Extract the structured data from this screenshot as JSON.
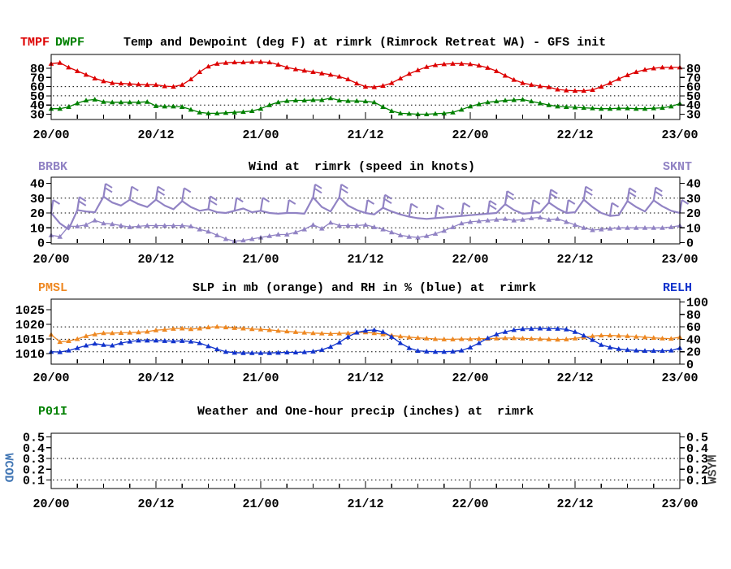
{
  "station": "rimrk",
  "time_axis": {
    "labels": [
      "20/00",
      "20/12",
      "21/00",
      "21/12",
      "22/00",
      "22/12",
      "23/00"
    ],
    "label_interval_hours": 12,
    "tick_interval_hours": 3
  },
  "side_labels": {
    "wcod": "WCOD",
    "wsym": "WSYM"
  },
  "chart_data": [
    {
      "id": "temp_dewpoint",
      "type": "line",
      "title": "Temp and Dewpoint (deg F) at rimrk (Rimrock Retreat WA) - GFS init",
      "y_axis": {
        "ticks": [
          80,
          70,
          60,
          50,
          40,
          30
        ],
        "dotted_gridlines": [
          40,
          50,
          60
        ]
      },
      "x_hours": {
        "start": 0,
        "end": 72,
        "step": 1
      },
      "series": [
        {
          "name": "TMPF",
          "color": "#dd0000",
          "units": "deg F",
          "markers": true,
          "values": [
            85,
            86,
            81,
            77,
            73,
            69,
            66,
            64,
            63.5,
            63,
            62.5,
            62,
            62,
            60.5,
            60,
            62,
            68,
            76,
            82,
            85,
            86,
            86.5,
            86.5,
            87,
            87,
            86.5,
            84,
            81,
            79,
            77.5,
            76,
            74.5,
            73,
            71,
            68,
            63.5,
            60,
            59.5,
            61,
            64,
            69,
            74,
            78,
            81.5,
            83.5,
            84.5,
            85,
            85,
            84.5,
            83,
            80.5,
            77,
            72,
            67.5,
            64,
            62,
            60.5,
            59.5,
            57,
            56,
            55.5,
            55.5,
            56.5,
            60,
            64,
            68.5,
            72.5,
            76,
            78.5,
            80,
            81,
            81,
            81
          ]
        },
        {
          "name": "DWPF",
          "color": "#008000",
          "units": "deg F",
          "markers": true,
          "values": [
            36,
            36,
            38,
            42,
            45,
            46,
            43.5,
            43,
            43,
            43,
            43,
            43.5,
            39,
            38.5,
            38.5,
            38,
            35,
            32,
            31,
            31,
            31.5,
            32,
            32.5,
            33.5,
            36,
            40,
            43,
            44.5,
            45,
            45,
            45.5,
            45.5,
            47.5,
            45,
            44.5,
            44.5,
            44,
            43,
            38,
            33.5,
            31,
            30.5,
            30,
            30,
            30.5,
            31,
            32,
            35,
            38.5,
            41,
            43,
            44,
            45,
            45.5,
            46,
            44,
            42,
            40,
            38.5,
            38,
            37.5,
            37,
            36.5,
            36,
            36,
            36.5,
            36.5,
            36,
            36,
            36.5,
            37,
            38.5,
            41.5
          ]
        }
      ]
    },
    {
      "id": "wind",
      "type": "line",
      "title": "Wind at  rimrk (speed in knots)",
      "y_axis": {
        "ticks": [
          40,
          30,
          20,
          10,
          0
        ],
        "dotted_gridlines": [
          10,
          20,
          30
        ]
      },
      "x_hours": {
        "start": 0,
        "end": 72,
        "step": 1
      },
      "series": [
        {
          "name": "SKNT",
          "color": "#9183c4",
          "units": "knots",
          "markers": true,
          "values": [
            5,
            4,
            11,
            11,
            12,
            15,
            13,
            12.5,
            11.5,
            10.5,
            11,
            11.5,
            11.5,
            11.5,
            11.5,
            11.5,
            11,
            9,
            7.5,
            5,
            2.5,
            1,
            1.5,
            2.5,
            3.5,
            4.5,
            5.5,
            5.5,
            7,
            9,
            12,
            9.5,
            13.5,
            11.5,
            11.5,
            11.5,
            12,
            10.5,
            9,
            7,
            5,
            4,
            3.5,
            4.5,
            6,
            8,
            10.5,
            13,
            14,
            14.5,
            15,
            15.5,
            16,
            15,
            15.5,
            16.5,
            17,
            15.5,
            16,
            14,
            12,
            10,
            8.5,
            9,
            9.5,
            10,
            10,
            10,
            10,
            10,
            10,
            10.5,
            11.5
          ]
        },
        {
          "name": "BRBK",
          "color": "#9183c4",
          "units": "knots",
          "markers": false,
          "values": [
            20,
            13,
            9,
            22,
            21,
            20.5,
            31,
            27,
            25,
            29,
            26,
            24,
            29,
            25,
            22.5,
            28,
            24,
            21.5,
            22.5,
            20.5,
            20,
            21.5,
            23,
            20.5,
            21.5,
            20,
            19.5,
            20,
            20,
            19.5,
            30.5,
            24,
            21,
            30.5,
            25,
            22,
            20,
            19,
            23.5,
            21,
            19,
            17.5,
            16.5,
            16,
            16.5,
            17,
            17.5,
            18,
            18.5,
            19,
            19.5,
            20,
            26,
            22,
            19.5,
            20,
            20.5,
            27,
            23,
            20,
            20.5,
            29,
            24,
            20,
            18,
            18.5,
            28,
            24,
            21,
            28.5,
            24.5,
            21.5,
            20
          ]
        }
      ],
      "barbs": [
        [
          0,
          1
        ],
        [
          3,
          2
        ],
        [
          6,
          2
        ],
        [
          9,
          1
        ],
        [
          12,
          2
        ],
        [
          15,
          1
        ],
        [
          18,
          2
        ],
        [
          21,
          1
        ],
        [
          24,
          1
        ],
        [
          27,
          1
        ],
        [
          30,
          2
        ],
        [
          33,
          2
        ],
        [
          36,
          1
        ],
        [
          38,
          2
        ],
        [
          41,
          1
        ],
        [
          44,
          1
        ],
        [
          47,
          1
        ],
        [
          50,
          2
        ],
        [
          52,
          2
        ],
        [
          55,
          1
        ],
        [
          57,
          2
        ],
        [
          59,
          1
        ],
        [
          61,
          2
        ],
        [
          64,
          1
        ],
        [
          66,
          2
        ],
        [
          69,
          2
        ],
        [
          72,
          1
        ]
      ]
    },
    {
      "id": "slp_rh",
      "type": "line",
      "title": "SLP in mb (orange) and RH in % (blue) at  rimrk",
      "y_axis_left": {
        "ticks": [
          1025,
          1020,
          1015,
          1010
        ]
      },
      "y_axis_right": {
        "ticks": [
          100,
          80,
          60,
          40,
          20,
          0
        ],
        "dotted_gridlines": [
          20,
          40,
          60
        ]
      },
      "x_hours": {
        "start": 0,
        "end": 72,
        "step": 1
      },
      "series": [
        {
          "name": "PMSL",
          "color": "#ee8822",
          "units": "mb",
          "axis": "left",
          "markers": true,
          "values": [
            1016.5,
            1014,
            1014.3,
            1015,
            1016,
            1016.6,
            1017,
            1017,
            1017.1,
            1017.2,
            1017.3,
            1017.5,
            1018,
            1018.2,
            1018.5,
            1018.6,
            1018.4,
            1018.6,
            1019,
            1019.2,
            1019,
            1018.8,
            1018.6,
            1018.4,
            1018.3,
            1018.1,
            1017.8,
            1017.6,
            1017.4,
            1017.2,
            1017,
            1016.9,
            1016.8,
            1016.9,
            1017,
            1017.2,
            1017.3,
            1017,
            1016.6,
            1016.2,
            1015.9,
            1015.6,
            1015.4,
            1015.2,
            1015,
            1014.9,
            1014.9,
            1015,
            1015,
            1015.1,
            1015.1,
            1015.2,
            1015.3,
            1015.3,
            1015.2,
            1015.1,
            1015,
            1014.9,
            1014.8,
            1014.9,
            1015.2,
            1015.6,
            1016,
            1016.2,
            1016.2,
            1016.1,
            1016,
            1015.8,
            1015.6,
            1015.4,
            1015.2,
            1015.1,
            1015.6
          ]
        },
        {
          "name": "RELH",
          "color": "#1133cc",
          "units": "%",
          "axis": "right",
          "markers": true,
          "values": [
            20,
            19.5,
            22,
            26,
            30,
            33,
            31,
            30,
            34,
            36.5,
            38,
            38,
            38,
            37.5,
            37,
            37.5,
            36.5,
            34,
            29,
            24,
            20,
            18.5,
            18,
            18,
            18,
            18,
            18.5,
            19,
            19,
            19.5,
            20.5,
            23,
            28,
            35,
            44,
            51,
            54,
            55,
            52,
            44,
            34,
            26,
            21.5,
            20.5,
            20,
            20,
            20.5,
            22,
            27,
            34,
            42,
            48,
            52,
            55,
            56.5,
            57,
            57.5,
            57,
            57,
            56,
            52,
            46,
            39,
            31,
            27,
            24.5,
            23,
            22,
            21.5,
            21.5,
            21.5,
            22,
            26
          ]
        }
      ]
    },
    {
      "id": "precip_weather",
      "type": "line",
      "title": "Weather and One-hour precip (inches) at  rimrk",
      "y_axis": {
        "ticks": [
          0.5,
          0.4,
          0.3,
          0.2,
          0.1
        ],
        "dotted_gridlines": [
          0.3,
          0.1
        ]
      },
      "x_hours": {
        "start": 0,
        "end": 72,
        "step": 1
      },
      "series": [
        {
          "name": "P01I",
          "color": "#008000",
          "units": "inches",
          "markers": true,
          "values": []
        }
      ]
    }
  ]
}
